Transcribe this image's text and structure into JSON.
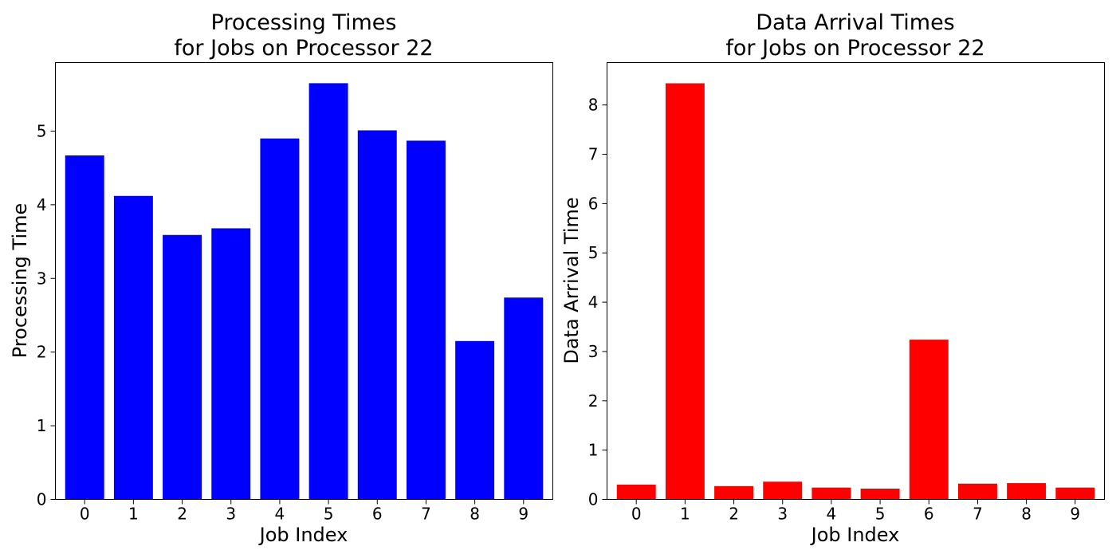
{
  "chart_data": [
    {
      "type": "bar",
      "title_line1": "Processing Times",
      "title_line2": "for Jobs on Processor 22",
      "xlabel": "Job Index",
      "ylabel": "Processing Time",
      "categories": [
        "0",
        "1",
        "2",
        "3",
        "4",
        "5",
        "6",
        "7",
        "8",
        "9"
      ],
      "values": [
        4.67,
        4.12,
        3.59,
        3.68,
        4.9,
        5.65,
        5.01,
        4.87,
        2.15,
        2.74
      ],
      "ylim": [
        0,
        5.93
      ],
      "yticks": [
        0,
        1,
        2,
        3,
        4,
        5
      ],
      "color": "#0000ff",
      "grid": false
    },
    {
      "type": "bar",
      "title_line1": "Data Arrival Times",
      "title_line2": "for Jobs on Processor 22",
      "xlabel": "Job Index",
      "ylabel": "Data Arrival Time",
      "categories": [
        "0",
        "1",
        "2",
        "3",
        "4",
        "5",
        "6",
        "7",
        "8",
        "9"
      ],
      "values": [
        0.3,
        8.44,
        0.27,
        0.36,
        0.24,
        0.22,
        3.24,
        0.32,
        0.33,
        0.24
      ],
      "ylim": [
        0,
        8.86
      ],
      "yticks": [
        0,
        1,
        2,
        3,
        4,
        5,
        6,
        7,
        8
      ],
      "color": "#ff0000",
      "grid": false
    }
  ]
}
